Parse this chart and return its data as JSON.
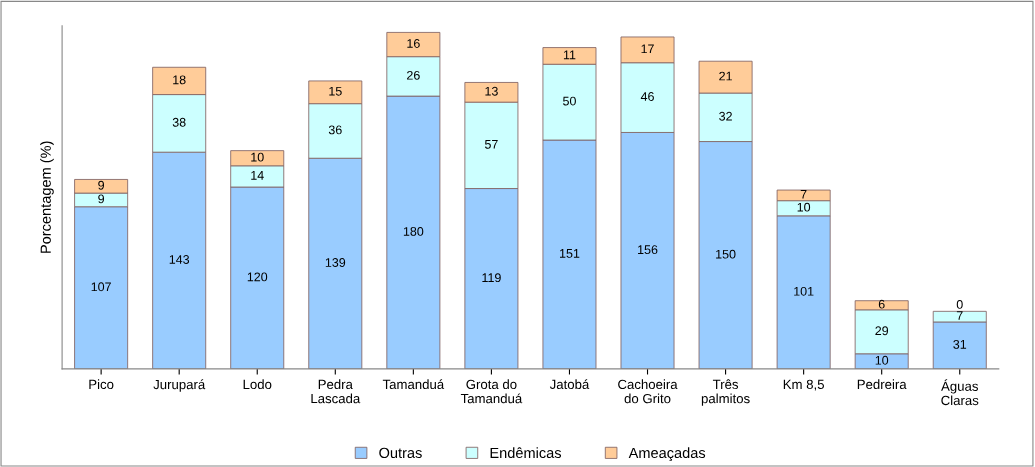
{
  "chart_data": {
    "type": "bar",
    "stacked": true,
    "data_labels": true,
    "ylabel": "Porcentagem (%)",
    "legend": "bottom",
    "grid": false,
    "categories": [
      "Pico",
      "Jurupará",
      "Lodo",
      "Pedra\nLascada",
      "Tamanduá",
      "Grota do\nTamanduá",
      "Jatobá",
      "Cachoeira\ndo Grito",
      "Três\npalmitos",
      "Km 8,5",
      "Pedreira",
      "Águas\nClaras"
    ],
    "series": [
      {
        "name": "Outras",
        "color": "#99ccff",
        "values": [
          107,
          143,
          120,
          139,
          180,
          119,
          151,
          156,
          150,
          101,
          10,
          31
        ]
      },
      {
        "name": "Endêmicas",
        "color": "#ccffff",
        "values": [
          9,
          38,
          14,
          36,
          26,
          57,
          50,
          46,
          32,
          10,
          29,
          7
        ]
      },
      {
        "name": "Ameaçadas",
        "color": "#ffcc99",
        "values": [
          9,
          18,
          10,
          15,
          16,
          13,
          11,
          17,
          21,
          7,
          6,
          0
        ]
      }
    ]
  }
}
